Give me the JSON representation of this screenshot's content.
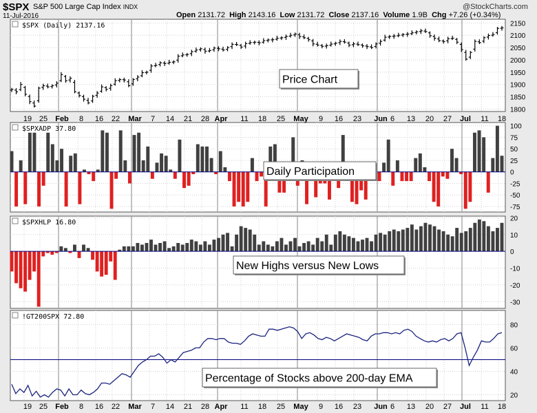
{
  "header": {
    "symbol": "$SPX",
    "name": "S&P 500 Large Cap Index",
    "exchange": "INDX",
    "date": "11-Jul-2016",
    "open_label": "Open",
    "open": "2131.72",
    "high_label": "High",
    "high": "2143.16",
    "low_label": "Low",
    "low": "2131.72",
    "close_label": "Close",
    "close": "2137.16",
    "volume_label": "Volume",
    "volume": "1.9B",
    "chg_label": "Chg",
    "chg": "+7.26 (+0.34%)",
    "brand": "@StockCharts.com"
  },
  "x_ticks": [
    {
      "label": "19",
      "bold": false
    },
    {
      "label": "25",
      "bold": false
    },
    {
      "label": "Feb",
      "bold": true
    },
    {
      "label": "8",
      "bold": false
    },
    {
      "label": "16",
      "bold": false
    },
    {
      "label": "22",
      "bold": false
    },
    {
      "label": "Mar",
      "bold": true
    },
    {
      "label": "7",
      "bold": false
    },
    {
      "label": "14",
      "bold": false
    },
    {
      "label": "21",
      "bold": false
    },
    {
      "label": "28",
      "bold": false
    },
    {
      "label": "Apr",
      "bold": true
    },
    {
      "label": "11",
      "bold": false
    },
    {
      "label": "18",
      "bold": false
    },
    {
      "label": "25",
      "bold": false
    },
    {
      "label": "May",
      "bold": true
    },
    {
      "label": "9",
      "bold": false
    },
    {
      "label": "16",
      "bold": false
    },
    {
      "label": "23",
      "bold": false
    },
    {
      "label": "Jun",
      "bold": true
    },
    {
      "label": "6",
      "bold": false
    },
    {
      "label": "13",
      "bold": false
    },
    {
      "label": "20",
      "bold": false
    },
    {
      "label": "27",
      "bold": false
    },
    {
      "label": "Jul",
      "bold": true
    },
    {
      "label": "11",
      "bold": false
    },
    {
      "label": "18",
      "bold": false
    }
  ],
  "panels": {
    "price": {
      "legend": "$SPX (Daily) 2137.16",
      "annotation": "Price Chart"
    },
    "adp": {
      "legend": "$SPXADP 37.80",
      "annotation": "Daily Participation"
    },
    "hlp": {
      "legend": "$SPXHLP 16.80",
      "annotation": "New Highs versus New Lows"
    },
    "gt200": {
      "legend": "!GT200SPX 72.80",
      "annotation": "Percentage of Stocks above 200-day EMA"
    }
  },
  "colors": {
    "up_bar": "#404040",
    "down_bar": "#e02020",
    "price_bar": "#000000",
    "line": "#1a237e",
    "ref_line": "#000080"
  },
  "chart_data": [
    {
      "type": "ohlc",
      "title": "$SPX (Daily) 2137.16",
      "ylim": [
        1790,
        2165
      ],
      "y_ticks": [
        1800,
        1850,
        1900,
        1950,
        2000,
        2050,
        2100,
        2150
      ],
      "close": [
        1880,
        1870,
        1900,
        1860,
        1830,
        1812,
        1885,
        1895,
        1890,
        1895,
        1905,
        1940,
        1915,
        1925,
        1870,
        1855,
        1840,
        1825,
        1852,
        1865,
        1890,
        1880,
        1895,
        1915,
        1920,
        1918,
        1895,
        1920,
        1930,
        1948,
        1950,
        1975,
        1978,
        1988,
        1985,
        1990,
        1992,
        2015,
        2020,
        2022,
        2033,
        2040,
        2045,
        2035,
        2038,
        2048,
        2045,
        2040,
        2050,
        2063,
        2062,
        2052,
        2066,
        2070,
        2072,
        2069,
        2078,
        2081,
        2082,
        2088,
        2090,
        2095,
        2100,
        2105,
        2095,
        2090,
        2082,
        2065,
        2060,
        2055,
        2058,
        2064,
        2068,
        2075,
        2072,
        2060,
        2065,
        2062,
        2057,
        2054,
        2050,
        2065,
        2075,
        2092,
        2095,
        2097,
        2100,
        2103,
        2105,
        2110,
        2114,
        2118,
        2115,
        2098,
        2088,
        2078,
        2074,
        2086,
        2088,
        2072,
        2042,
        2003,
        2030,
        2075,
        2070,
        2090,
        2099,
        2103,
        2128,
        2130
      ]
    },
    {
      "type": "bar",
      "title": "$SPXADP 37.80",
      "ylim": [
        -87,
        107
      ],
      "y_ticks": [
        -75,
        -50,
        -25,
        0,
        25,
        50,
        75,
        100
      ],
      "values": [
        45,
        -75,
        25,
        -70,
        85,
        85,
        -75,
        -30,
        85,
        60,
        25,
        50,
        -75,
        35,
        40,
        -70,
        5,
        -5,
        -20,
        5,
        90,
        85,
        -80,
        -15,
        90,
        25,
        -25,
        80,
        85,
        25,
        55,
        -15,
        20,
        40,
        35,
        5,
        -15,
        70,
        -35,
        -30,
        -5,
        60,
        55,
        55,
        30,
        -5,
        45,
        10,
        -20,
        -75,
        -65,
        -75,
        -65,
        30,
        -20,
        -10,
        -75,
        55,
        60,
        -45,
        -45,
        15,
        75,
        -30,
        25,
        -70,
        -20,
        -55,
        -25,
        -25,
        -60,
        5,
        -35,
        80,
        -5,
        -65,
        -70,
        -40,
        -60,
        15,
        -10,
        -20,
        20,
        70,
        -30,
        25,
        -20,
        -20,
        -20,
        30,
        40,
        10,
        -20,
        -65,
        -75,
        -10,
        -15,
        50,
        30,
        -5,
        -80,
        -65,
        85,
        90,
        75,
        -45,
        30,
        100,
        35
      ]
    },
    {
      "type": "bar",
      "title": "$SPXHLP 16.80",
      "ylim": [
        -34,
        21
      ],
      "y_ticks": [
        -30,
        -20,
        -10,
        0,
        10,
        20
      ],
      "values": [
        -12,
        -19,
        -22,
        -24,
        -17,
        -12,
        -33,
        -3,
        -1,
        -2,
        -1,
        3,
        2,
        -1,
        4,
        -4,
        4,
        2,
        -5,
        -12,
        -15,
        -14,
        -6,
        -17,
        1,
        3,
        3,
        3,
        5,
        4,
        5,
        7,
        4,
        5,
        6,
        2,
        3,
        5,
        4,
        5,
        7,
        6,
        4,
        6,
        4,
        7,
        8,
        10,
        11,
        3,
        10,
        15,
        14,
        13,
        10,
        4,
        6,
        4,
        3,
        6,
        8,
        4,
        6,
        8,
        3,
        5,
        6,
        4,
        8,
        6,
        10,
        4,
        10,
        12,
        10,
        9,
        8,
        6,
        7,
        8,
        6,
        10,
        11,
        10,
        12,
        13,
        12,
        13,
        14,
        16,
        13,
        15,
        17,
        16,
        15,
        13,
        12,
        10,
        9,
        14,
        11,
        12,
        14,
        17,
        19,
        18,
        15,
        12,
        14,
        17
      ]
    },
    {
      "type": "line",
      "title": "!GT200SPX 72.80",
      "ylim": [
        15,
        92
      ],
      "y_ticks": [
        20,
        40,
        60,
        80
      ],
      "values": [
        29,
        21,
        25,
        22,
        28,
        19,
        23,
        18,
        20,
        18,
        22,
        25,
        24,
        19,
        25,
        20,
        20,
        24,
        21,
        20,
        22,
        25,
        30,
        30,
        29,
        32,
        35,
        38,
        37,
        35,
        40,
        45,
        48,
        50,
        53,
        53,
        55,
        52,
        47,
        50,
        48,
        52,
        56,
        57,
        58,
        60,
        60,
        65,
        68,
        68,
        67,
        68,
        68,
        65,
        64,
        64,
        63,
        66,
        70,
        72,
        71,
        70,
        70,
        76,
        76,
        75,
        76,
        77,
        78,
        77,
        74,
        68,
        72,
        73,
        71,
        68,
        67,
        69,
        68,
        66,
        68,
        70,
        72,
        71,
        70,
        69,
        67,
        66,
        70,
        72,
        72,
        73,
        73,
        72,
        73,
        72,
        75,
        76,
        74,
        70,
        68,
        66,
        65,
        66,
        65,
        67,
        68,
        66,
        68,
        72,
        73,
        60,
        45,
        52,
        58,
        66,
        65,
        65,
        68,
        72,
        73
      ]
    }
  ]
}
